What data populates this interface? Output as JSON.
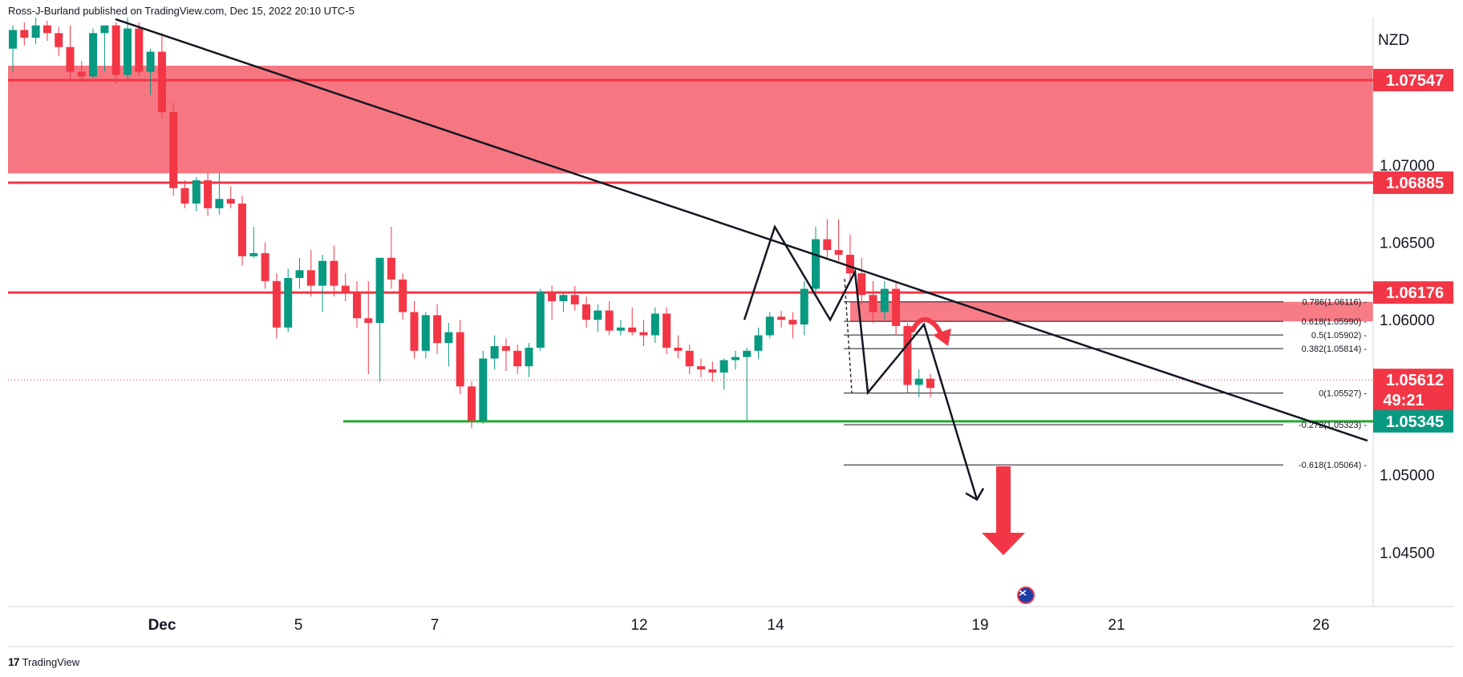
{
  "header": {
    "attribution": "Ross-J-Burland published on TradingView.com, Dec 15, 2022 20:10 UTC-5"
  },
  "footer": {
    "brand": "TradingView",
    "logo_glyph": "17"
  },
  "chart_data": {
    "type": "candlestick",
    "currency": "NZD",
    "ylim": [
      1.0415,
      1.0795
    ],
    "y_ticks": [
      "1.07000",
      "1.06500",
      "1.06000",
      "1.05000",
      "1.04500"
    ],
    "x_ticks": [
      "Dec",
      "5",
      "7",
      "12",
      "14",
      "19",
      "21",
      "26"
    ],
    "price_labels": [
      {
        "text": "1.07547",
        "value": 1.07547,
        "color": "#f23645"
      },
      {
        "text": "1.06885",
        "value": 1.06885,
        "color": "#f23645"
      },
      {
        "text": "1.06176",
        "value": 1.06176,
        "color": "#f23645"
      },
      {
        "text": "1.05612",
        "value": 1.05612,
        "sub": "49:21",
        "color": "#f23645"
      },
      {
        "text": "1.05345",
        "value": 1.05345,
        "color": "#089981"
      }
    ],
    "resistance_zone": {
      "top": 1.0764,
      "bottom": 1.06945,
      "color": "#f23645"
    },
    "horizontal_lines": [
      {
        "value": 1.07547,
        "color": "#f23645"
      },
      {
        "value": 1.06885,
        "color": "#f23645"
      },
      {
        "value": 1.06176,
        "color": "#f23645"
      },
      {
        "value": 1.05345,
        "color": "#22a832"
      }
    ],
    "fib_levels": [
      {
        "label": "0.786(1.06116)",
        "value": 1.06116
      },
      {
        "label": "0.618(1.05990)",
        "value": 1.0599
      },
      {
        "label": "0.5(1.05902)",
        "value": 1.05902
      },
      {
        "label": "0.382(1.05814)",
        "value": 1.05814
      },
      {
        "label": "0(1.05527)",
        "value": 1.05527
      },
      {
        "label": "-0.272(1.05323)",
        "value": 1.05323
      },
      {
        "label": "-0.618(1.05064)",
        "value": 1.05064
      }
    ],
    "candles": [
      {
        "o": 1.0775,
        "h": 1.079,
        "l": 1.076,
        "c": 1.0787
      },
      {
        "o": 1.0787,
        "h": 1.0792,
        "l": 1.0777,
        "c": 1.0782
      },
      {
        "o": 1.0782,
        "h": 1.0795,
        "l": 1.0778,
        "c": 1.079
      },
      {
        "o": 1.079,
        "h": 1.0793,
        "l": 1.078,
        "c": 1.0785
      },
      {
        "o": 1.0785,
        "h": 1.0789,
        "l": 1.077,
        "c": 1.0776
      },
      {
        "o": 1.0776,
        "h": 1.079,
        "l": 1.0755,
        "c": 1.076
      },
      {
        "o": 1.076,
        "h": 1.0767,
        "l": 1.0753,
        "c": 1.0757
      },
      {
        "o": 1.0757,
        "h": 1.0788,
        "l": 1.0756,
        "c": 1.0785
      },
      {
        "o": 1.0785,
        "h": 1.079,
        "l": 1.076,
        "c": 1.079
      },
      {
        "o": 1.079,
        "h": 1.0792,
        "l": 1.0752,
        "c": 1.0758
      },
      {
        "o": 1.0758,
        "h": 1.0795,
        "l": 1.0755,
        "c": 1.0788
      },
      {
        "o": 1.0788,
        "h": 1.0792,
        "l": 1.0757,
        "c": 1.076
      },
      {
        "o": 1.076,
        "h": 1.0775,
        "l": 1.0745,
        "c": 1.0773
      },
      {
        "o": 1.0773,
        "h": 1.0785,
        "l": 1.073,
        "c": 1.0734
      },
      {
        "o": 1.0734,
        "h": 1.074,
        "l": 1.068,
        "c": 1.0685
      },
      {
        "o": 1.0685,
        "h": 1.069,
        "l": 1.0672,
        "c": 1.0675
      },
      {
        "o": 1.0675,
        "h": 1.0692,
        "l": 1.067,
        "c": 1.069
      },
      {
        "o": 1.069,
        "h": 1.0695,
        "l": 1.0667,
        "c": 1.0672
      },
      {
        "o": 1.0672,
        "h": 1.0695,
        "l": 1.0668,
        "c": 1.0678
      },
      {
        "o": 1.0678,
        "h": 1.0686,
        "l": 1.0672,
        "c": 1.0675
      },
      {
        "o": 1.0675,
        "h": 1.068,
        "l": 1.0635,
        "c": 1.0641
      },
      {
        "o": 1.0641,
        "h": 1.066,
        "l": 1.064,
        "c": 1.0643
      },
      {
        "o": 1.0643,
        "h": 1.065,
        "l": 1.062,
        "c": 1.0625
      },
      {
        "o": 1.0625,
        "h": 1.063,
        "l": 1.0588,
        "c": 1.0595
      },
      {
        "o": 1.0595,
        "h": 1.0633,
        "l": 1.0592,
        "c": 1.0627
      },
      {
        "o": 1.0627,
        "h": 1.064,
        "l": 1.062,
        "c": 1.0632
      },
      {
        "o": 1.0632,
        "h": 1.0645,
        "l": 1.0615,
        "c": 1.0622
      },
      {
        "o": 1.0622,
        "h": 1.0642,
        "l": 1.0605,
        "c": 1.0638
      },
      {
        "o": 1.0638,
        "h": 1.0648,
        "l": 1.0615,
        "c": 1.0622
      },
      {
        "o": 1.0622,
        "h": 1.063,
        "l": 1.0612,
        "c": 1.0618
      },
      {
        "o": 1.0618,
        "h": 1.0625,
        "l": 1.0595,
        "c": 1.0601
      },
      {
        "o": 1.0601,
        "h": 1.0625,
        "l": 1.0565,
        "c": 1.0598
      },
      {
        "o": 1.0598,
        "h": 1.064,
        "l": 1.056,
        "c": 1.064
      },
      {
        "o": 1.064,
        "h": 1.066,
        "l": 1.062,
        "c": 1.0626
      },
      {
        "o": 1.0626,
        "h": 1.063,
        "l": 1.06,
        "c": 1.0605
      },
      {
        "o": 1.0605,
        "h": 1.0612,
        "l": 1.0575,
        "c": 1.058
      },
      {
        "o": 1.058,
        "h": 1.0605,
        "l": 1.0575,
        "c": 1.0603
      },
      {
        "o": 1.0603,
        "h": 1.061,
        "l": 1.0578,
        "c": 1.0585
      },
      {
        "o": 1.0585,
        "h": 1.0598,
        "l": 1.057,
        "c": 1.0592
      },
      {
        "o": 1.0592,
        "h": 1.06,
        "l": 1.0552,
        "c": 1.0557
      },
      {
        "o": 1.0557,
        "h": 1.056,
        "l": 1.053,
        "c": 1.0535
      },
      {
        "o": 1.0535,
        "h": 1.058,
        "l": 1.0533,
        "c": 1.0575
      },
      {
        "o": 1.0575,
        "h": 1.059,
        "l": 1.0568,
        "c": 1.0583
      },
      {
        "o": 1.0583,
        "h": 1.0588,
        "l": 1.0567,
        "c": 1.058
      },
      {
        "o": 1.058,
        "h": 1.0584,
        "l": 1.0565,
        "c": 1.057
      },
      {
        "o": 1.057,
        "h": 1.0585,
        "l": 1.0563,
        "c": 1.0582
      },
      {
        "o": 1.0582,
        "h": 1.062,
        "l": 1.058,
        "c": 1.0618
      },
      {
        "o": 1.0618,
        "h": 1.0622,
        "l": 1.06,
        "c": 1.0612
      },
      {
        "o": 1.0612,
        "h": 1.0618,
        "l": 1.0605,
        "c": 1.0616
      },
      {
        "o": 1.0616,
        "h": 1.0622,
        "l": 1.0606,
        "c": 1.061
      },
      {
        "o": 1.061,
        "h": 1.0615,
        "l": 1.0595,
        "c": 1.06
      },
      {
        "o": 1.06,
        "h": 1.061,
        "l": 1.0592,
        "c": 1.0606
      },
      {
        "o": 1.0606,
        "h": 1.0612,
        "l": 1.059,
        "c": 1.0593
      },
      {
        "o": 1.0593,
        "h": 1.06,
        "l": 1.059,
        "c": 1.0595
      },
      {
        "o": 1.0595,
        "h": 1.0608,
        "l": 1.059,
        "c": 1.0592
      },
      {
        "o": 1.0592,
        "h": 1.06,
        "l": 1.0583,
        "c": 1.059
      },
      {
        "o": 1.059,
        "h": 1.0608,
        "l": 1.0585,
        "c": 1.0604
      },
      {
        "o": 1.0604,
        "h": 1.0608,
        "l": 1.0578,
        "c": 1.0582
      },
      {
        "o": 1.0582,
        "h": 1.059,
        "l": 1.0575,
        "c": 1.058
      },
      {
        "o": 1.058,
        "h": 1.0584,
        "l": 1.0565,
        "c": 1.057
      },
      {
        "o": 1.057,
        "h": 1.0575,
        "l": 1.0563,
        "c": 1.0568
      },
      {
        "o": 1.0568,
        "h": 1.0573,
        "l": 1.056,
        "c": 1.0566
      },
      {
        "o": 1.0566,
        "h": 1.0575,
        "l": 1.0555,
        "c": 1.0574
      },
      {
        "o": 1.0574,
        "h": 1.058,
        "l": 1.0568,
        "c": 1.0576
      },
      {
        "o": 1.0576,
        "h": 1.0582,
        "l": 1.0535,
        "c": 1.058
      },
      {
        "o": 1.058,
        "h": 1.0595,
        "l": 1.0575,
        "c": 1.059
      },
      {
        "o": 1.059,
        "h": 1.0605,
        "l": 1.0588,
        "c": 1.0602
      },
      {
        "o": 1.0602,
        "h": 1.0606,
        "l": 1.0595,
        "c": 1.06
      },
      {
        "o": 1.06,
        "h": 1.0605,
        "l": 1.0588,
        "c": 1.0597
      },
      {
        "o": 1.0597,
        "h": 1.0625,
        "l": 1.059,
        "c": 1.062
      },
      {
        "o": 1.062,
        "h": 1.066,
        "l": 1.0618,
        "c": 1.0652
      },
      {
        "o": 1.0652,
        "h": 1.0665,
        "l": 1.064,
        "c": 1.0645
      },
      {
        "o": 1.0645,
        "h": 1.0665,
        "l": 1.0638,
        "c": 1.0642
      },
      {
        "o": 1.0642,
        "h": 1.0655,
        "l": 1.0625,
        "c": 1.063
      },
      {
        "o": 1.063,
        "h": 1.064,
        "l": 1.061,
        "c": 1.0616
      },
      {
        "o": 1.0616,
        "h": 1.0625,
        "l": 1.0598,
        "c": 1.0605
      },
      {
        "o": 1.0605,
        "h": 1.0625,
        "l": 1.06,
        "c": 1.062
      },
      {
        "o": 1.062,
        "h": 1.0625,
        "l": 1.059,
        "c": 1.0596
      },
      {
        "o": 1.0596,
        "h": 1.0598,
        "l": 1.0553,
        "c": 1.0558
      },
      {
        "o": 1.0558,
        "h": 1.0568,
        "l": 1.055,
        "c": 1.0562
      },
      {
        "o": 1.0562,
        "h": 1.0565,
        "l": 1.055,
        "c": 1.0556
      }
    ],
    "trendline": {
      "from": [
        0,
        1.0794
      ],
      "to": [
        "21",
        1.0522
      ]
    },
    "pattern_points": [
      1.06,
      1.066,
      1.06,
      1.0631,
      1.0553,
      1.0597,
      1.0484
    ]
  }
}
